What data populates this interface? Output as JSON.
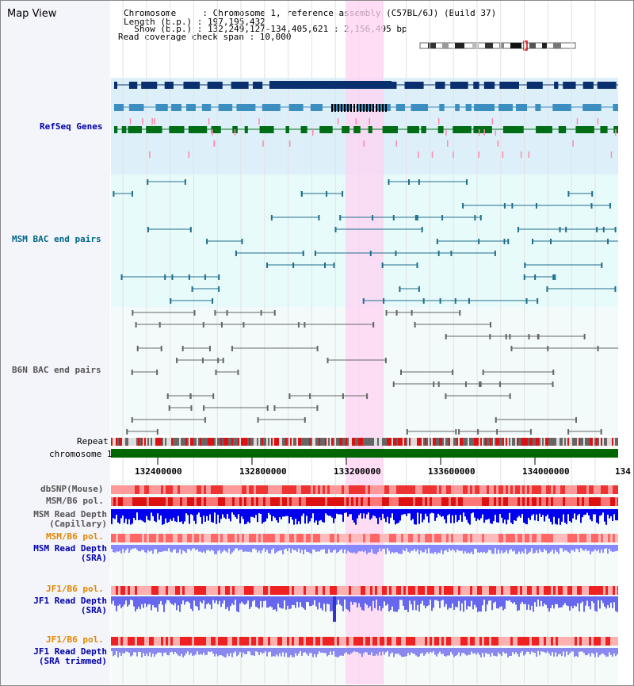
{
  "title": "Map View",
  "info": {
    "line1": "Chromosome     : Chromosome 1, reference assembly (C57BL/6J) (Build 37)",
    "line2": "Length (b.p.) : 197,195,432",
    "line3": "  Show (b.p.) : 132,249,127-134,405,621 : 2,156,495 bp",
    "line4": "Read coverage check span : 10,000"
  },
  "tracks": {
    "refseq": "RefSeq Genes",
    "msm_bac": "MSM BAC end pairs",
    "b6n_bac": "B6N BAC end pairs",
    "repeat": "Repeat",
    "chrom": "chromosome 1",
    "dbsnp": "dbSNP(Mouse)",
    "msm_b6_pol": "MSM/B6 pol.",
    "msm_depth_cap": "MSM Read Depth\n(Capillary)",
    "msm_b6_pol_sra": "MSM/B6 pol.",
    "msm_depth_sra": "MSM Read Depth\n(SRA)",
    "jf1_b6_pol": "JF1/B6 pol.",
    "jf1_depth_sra": "JF1 Read Depth\n(SRA)",
    "jf1_b6_pol_trim": "JF1/B6 pol.",
    "jf1_depth_trim": "JF1 Read Depth\n(SRA trimmed)"
  },
  "axis": {
    "ticks": [
      "132400000",
      "132800000",
      "133200000",
      "133600000",
      "134000000",
      "134"
    ]
  },
  "colors": {
    "refseq_bg": "#ddf0fa",
    "bac_bg": "#e8fbfb",
    "highlight": "#ffc8f0",
    "chrom_bar": "#006600",
    "label_blue": "#0000aa",
    "label_teal": "#006688",
    "label_gray": "#555555",
    "label_orange": "#e08800"
  }
}
